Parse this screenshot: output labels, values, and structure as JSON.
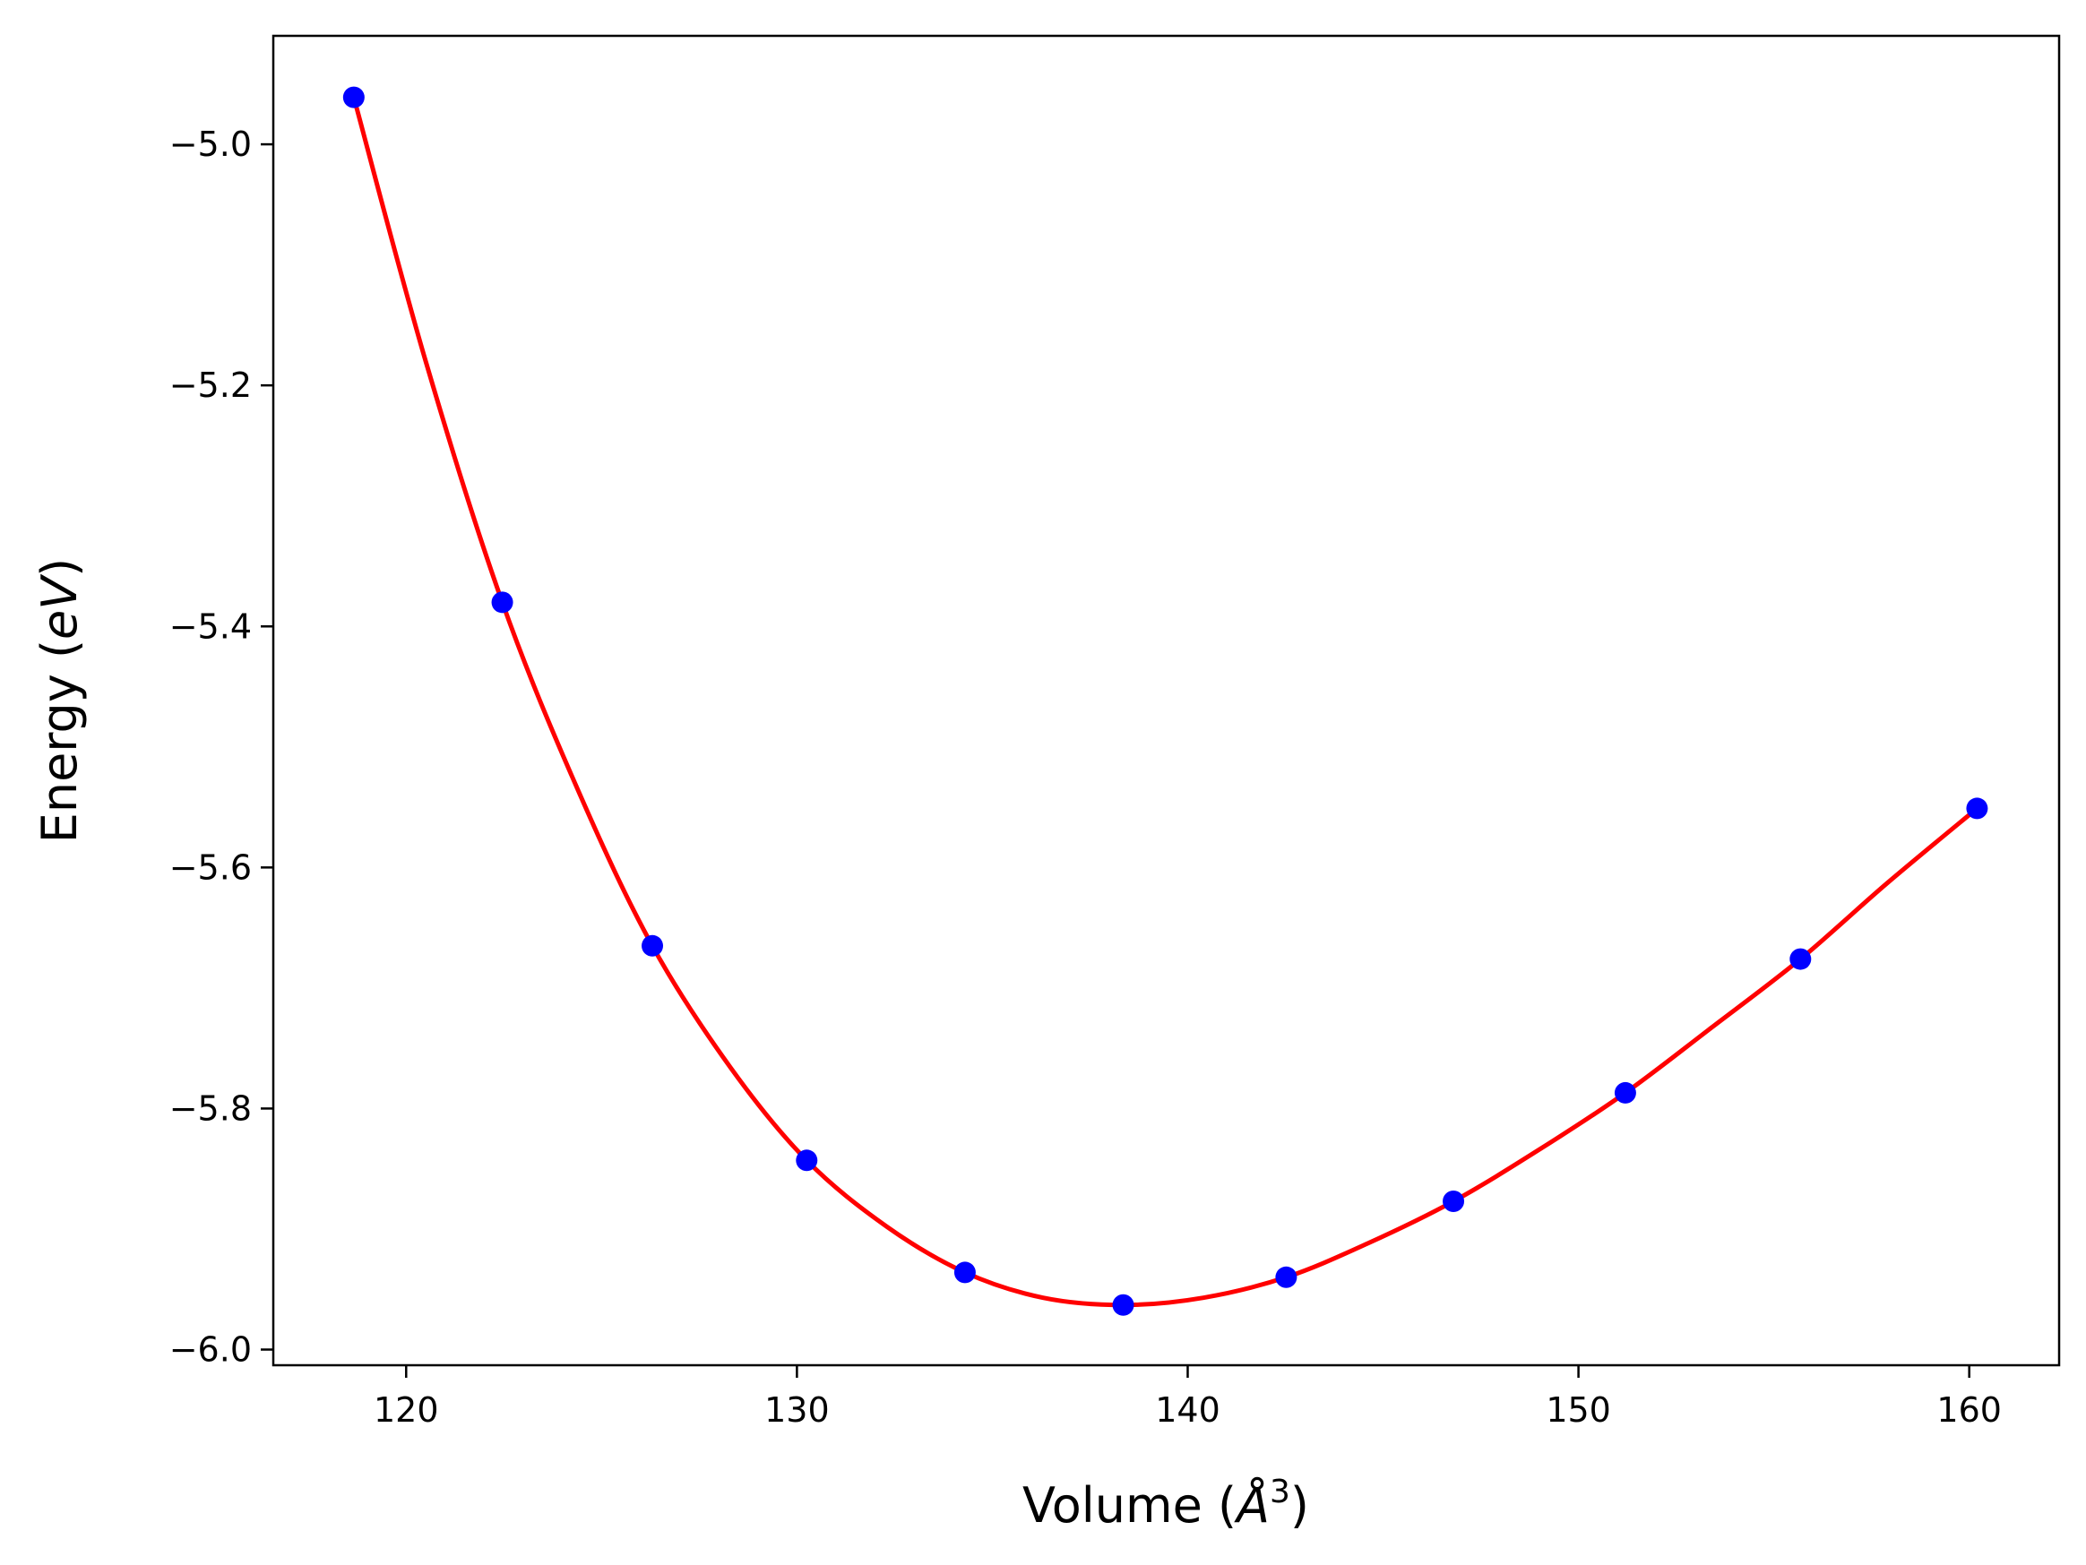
{
  "chart_data": {
    "type": "scatter",
    "title": "",
    "xlabel": {
      "prefix": "Volume (",
      "symbol": "Å",
      "power": "3",
      "suffix": ")"
    },
    "ylabel": {
      "prefix": "Energy (",
      "unit": "eV",
      "suffix": ")"
    },
    "xlim": [
      116.6,
      162.3
    ],
    "ylim": [
      -6.013,
      -4.91
    ],
    "xticks": [
      120,
      130,
      140,
      150,
      160
    ],
    "xtick_labels": [
      "120",
      "130",
      "140",
      "150",
      "160"
    ],
    "yticks": [
      -5.0,
      -5.2,
      -5.4,
      -5.6,
      -5.8,
      -6.0
    ],
    "ytick_labels": [
      "−5.0",
      "−5.2",
      "−5.4",
      "−5.6",
      "−5.8",
      "−6.0"
    ],
    "grid": false,
    "series": [
      {
        "kind": "points",
        "color": "#0000ff",
        "x": [
          118.66,
          122.46,
          126.3,
          130.25,
          134.3,
          138.35,
          142.52,
          146.8,
          151.2,
          155.68,
          160.2
        ],
        "y": [
          -4.961,
          -5.38,
          -5.665,
          -5.843,
          -5.936,
          -5.963,
          -5.94,
          -5.877,
          -5.787,
          -5.676,
          -5.551
        ]
      },
      {
        "kind": "fit-curve",
        "color": "#ff0000",
        "x": [
          118.66,
          120.5,
          122.46,
          124.4,
          126.3,
          128.3,
          130.25,
          132.3,
          134.3,
          136.3,
          138.35,
          140.4,
          142.52,
          144.6,
          146.8,
          149.0,
          151.2,
          153.4,
          155.68,
          157.9,
          160.2
        ],
        "y": [
          -4.961,
          -5.18,
          -5.38,
          -5.536,
          -5.665,
          -5.766,
          -5.843,
          -5.898,
          -5.936,
          -5.957,
          -5.963,
          -5.957,
          -5.94,
          -5.912,
          -5.877,
          -5.834,
          -5.787,
          -5.733,
          -5.676,
          -5.613,
          -5.551
        ]
      }
    ]
  }
}
